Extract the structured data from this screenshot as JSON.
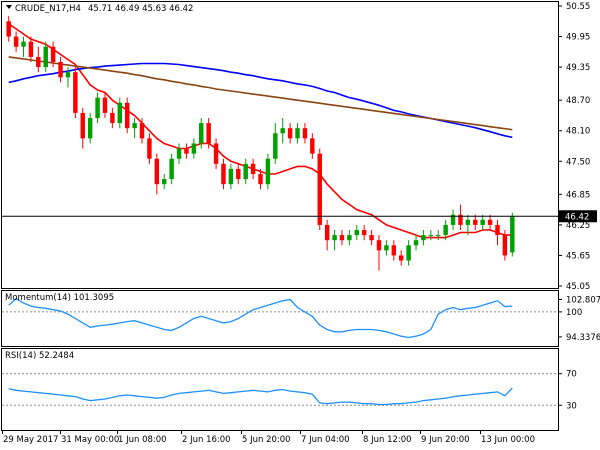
{
  "chart_data": [
    {
      "type": "candlestick",
      "title": "CRUDE_N17,H4",
      "ohlc_label": "45.71 46.49 45.63 46.42",
      "last_price": 46.42,
      "ylim": [
        45.05,
        50.55
      ],
      "y_ticks": [
        "50.55",
        "49.95",
        "49.35",
        "48.70",
        "48.10",
        "47.50",
        "46.85",
        "46.25",
        "45.65",
        "45.05"
      ],
      "x_labels": [
        "29 May 2017",
        "31 May 00:00",
        "1 Jun 08:00",
        "2 Jun 16:00",
        "5 Jun 20:00",
        "7 Jun 04:00",
        "8 Jun 12:00",
        "9 Jun 20:00",
        "13 Jun 00:00"
      ],
      "colors": {
        "bull": "#00a000",
        "bear": "#ff0000",
        "fast_ma": "#ff0000",
        "mid_ma": "#0000ff",
        "slow_ma": "#8b4513",
        "price_line": "#000000"
      },
      "candles": [
        [
          50.25,
          50.35,
          49.85,
          49.95
        ],
        [
          49.95,
          50.05,
          49.65,
          49.75
        ],
        [
          49.75,
          49.95,
          49.55,
          49.85
        ],
        [
          49.85,
          49.95,
          49.45,
          49.55
        ],
        [
          49.55,
          49.75,
          49.25,
          49.35
        ],
        [
          49.35,
          49.85,
          49.25,
          49.75
        ],
        [
          49.75,
          49.85,
          49.35,
          49.45
        ],
        [
          49.45,
          49.55,
          49.05,
          49.15
        ],
        [
          49.15,
          49.35,
          48.95,
          49.25
        ],
        [
          49.25,
          49.35,
          48.35,
          48.45
        ],
        [
          48.45,
          48.55,
          47.75,
          47.95
        ],
        [
          47.95,
          48.45,
          47.85,
          48.35
        ],
        [
          48.35,
          48.85,
          48.25,
          48.75
        ],
        [
          48.75,
          48.85,
          48.35,
          48.45
        ],
        [
          48.45,
          48.55,
          48.15,
          48.25
        ],
        [
          48.25,
          48.75,
          48.15,
          48.65
        ],
        [
          48.65,
          48.75,
          48.05,
          48.15
        ],
        [
          48.15,
          48.35,
          47.95,
          48.25
        ],
        [
          48.25,
          48.35,
          47.85,
          47.95
        ],
        [
          47.95,
          48.05,
          47.45,
          47.55
        ],
        [
          47.55,
          47.65,
          46.85,
          47.05
        ],
        [
          47.05,
          47.25,
          46.95,
          47.15
        ],
        [
          47.15,
          47.65,
          47.05,
          47.55
        ],
        [
          47.55,
          47.85,
          47.45,
          47.75
        ],
        [
          47.75,
          47.85,
          47.55,
          47.65
        ],
        [
          47.65,
          47.95,
          47.55,
          47.85
        ],
        [
          47.85,
          48.35,
          47.75,
          48.25
        ],
        [
          48.25,
          48.35,
          47.75,
          47.85
        ],
        [
          47.85,
          47.95,
          47.35,
          47.45
        ],
        [
          47.45,
          47.55,
          46.95,
          47.05
        ],
        [
          47.05,
          47.45,
          46.95,
          47.35
        ],
        [
          47.35,
          47.45,
          47.05,
          47.15
        ],
        [
          47.15,
          47.55,
          47.05,
          47.45
        ],
        [
          47.45,
          47.55,
          47.15,
          47.25
        ],
        [
          47.25,
          47.35,
          46.95,
          47.05
        ],
        [
          47.05,
          47.65,
          46.95,
          47.55
        ],
        [
          47.55,
          48.25,
          47.45,
          48.05
        ],
        [
          48.05,
          48.35,
          47.85,
          48.15
        ],
        [
          48.15,
          48.25,
          47.85,
          47.95
        ],
        [
          47.95,
          48.25,
          47.85,
          48.15
        ],
        [
          48.15,
          48.25,
          47.85,
          47.95
        ],
        [
          47.95,
          48.05,
          47.55,
          47.65
        ],
        [
          47.65,
          47.75,
          46.15,
          46.25
        ],
        [
          46.25,
          46.35,
          45.75,
          45.95
        ],
        [
          45.95,
          46.15,
          45.75,
          46.05
        ],
        [
          46.05,
          46.15,
          45.85,
          45.95
        ],
        [
          45.95,
          46.15,
          45.85,
          46.05
        ],
        [
          46.05,
          46.25,
          45.95,
          46.15
        ],
        [
          46.15,
          46.25,
          45.95,
          46.05
        ],
        [
          46.05,
          46.15,
          45.85,
          45.95
        ],
        [
          45.95,
          46.05,
          45.35,
          45.75
        ],
        [
          45.75,
          45.95,
          45.65,
          45.85
        ],
        [
          45.85,
          45.95,
          45.55,
          45.65
        ],
        [
          45.65,
          45.75,
          45.45,
          45.55
        ],
        [
          45.55,
          45.95,
          45.45,
          45.85
        ],
        [
          45.85,
          46.05,
          45.75,
          45.95
        ],
        [
          45.95,
          46.15,
          45.85,
          46.05
        ],
        [
          46.05,
          46.15,
          45.95,
          46.05
        ],
        [
          46.05,
          46.15,
          45.95,
          46.05
        ],
        [
          46.05,
          46.35,
          45.95,
          46.25
        ],
        [
          46.25,
          46.55,
          46.15,
          46.45
        ],
        [
          46.45,
          46.65,
          46.15,
          46.25
        ],
        [
          46.25,
          46.45,
          46.05,
          46.35
        ],
        [
          46.35,
          46.45,
          46.15,
          46.25
        ],
        [
          46.25,
          46.45,
          46.15,
          46.35
        ],
        [
          46.35,
          46.45,
          46.15,
          46.25
        ],
        [
          46.25,
          46.35,
          45.85,
          46.05
        ],
        [
          46.05,
          46.15,
          45.55,
          45.65
        ],
        [
          45.71,
          46.49,
          45.63,
          46.42
        ]
      ],
      "mas": [
        {
          "name": "fast",
          "values": [
            50.2,
            50.1,
            50.0,
            49.9,
            49.85,
            49.8,
            49.7,
            49.6,
            49.5,
            49.4,
            49.2,
            49.0,
            48.9,
            48.85,
            48.7,
            48.6,
            48.5,
            48.4,
            48.25,
            48.1,
            47.95,
            47.85,
            47.8,
            47.75,
            47.75,
            47.8,
            47.85,
            47.85,
            47.75,
            47.6,
            47.5,
            47.45,
            47.4,
            47.35,
            47.3,
            47.25,
            47.25,
            47.3,
            47.35,
            47.4,
            47.4,
            47.35,
            47.25,
            47.05,
            46.9,
            46.75,
            46.65,
            46.55,
            46.5,
            46.45,
            46.35,
            46.25,
            46.2,
            46.15,
            46.1,
            46.05,
            46.0,
            46.0,
            46.0,
            46.0,
            46.05,
            46.1,
            46.1,
            46.1,
            46.15,
            46.15,
            46.1,
            46.05,
            46.05
          ]
        },
        {
          "name": "mid",
          "values": [
            49.05,
            49.08,
            49.12,
            49.15,
            49.18,
            49.2,
            49.22,
            49.25,
            49.27,
            49.3,
            49.32,
            49.34,
            49.35,
            49.37,
            49.38,
            49.39,
            49.4,
            49.41,
            49.42,
            49.42,
            49.42,
            49.42,
            49.41,
            49.4,
            49.38,
            49.36,
            49.34,
            49.32,
            49.3,
            49.28,
            49.25,
            49.23,
            49.2,
            49.18,
            49.15,
            49.12,
            49.1,
            49.08,
            49.05,
            49.02,
            49.0,
            48.97,
            48.93,
            48.88,
            48.85,
            48.8,
            48.75,
            48.72,
            48.68,
            48.64,
            48.6,
            48.55,
            48.5,
            48.47,
            48.43,
            48.4,
            48.37,
            48.34,
            48.31,
            48.28,
            48.25,
            48.22,
            48.19,
            48.16,
            48.12,
            48.08,
            48.04,
            48.0,
            47.97
          ]
        },
        {
          "name": "slow",
          "values": [
            49.55,
            49.53,
            49.51,
            49.49,
            49.47,
            49.45,
            49.43,
            49.41,
            49.39,
            49.37,
            49.35,
            49.33,
            49.31,
            49.29,
            49.27,
            49.25,
            49.23,
            49.2,
            49.18,
            49.15,
            49.12,
            49.1,
            49.07,
            49.05,
            49.02,
            49.0,
            48.97,
            48.95,
            48.92,
            48.9,
            48.88,
            48.86,
            48.84,
            48.82,
            48.8,
            48.78,
            48.76,
            48.74,
            48.72,
            48.7,
            48.68,
            48.66,
            48.64,
            48.62,
            48.6,
            48.58,
            48.56,
            48.54,
            48.52,
            48.5,
            48.48,
            48.46,
            48.44,
            48.42,
            48.4,
            48.38,
            48.36,
            48.34,
            48.32,
            48.3,
            48.28,
            48.26,
            48.24,
            48.22,
            48.2,
            48.18,
            48.16,
            48.14,
            48.12
          ]
        }
      ]
    },
    {
      "type": "line",
      "title": "Momentum(14) 101.3095",
      "ylim": [
        92.5,
        104.5
      ],
      "y_ticks": [
        "102.8075",
        "100",
        "94.3376"
      ],
      "reference_line": 100,
      "color": "#1e90ff",
      "values": [
        101.5,
        103.0,
        102.0,
        101.3,
        101.0,
        100.8,
        100.5,
        100.2,
        99.5,
        98.5,
        97.5,
        96.5,
        96.8,
        97.0,
        97.2,
        97.5,
        97.8,
        98.0,
        97.5,
        97.0,
        96.5,
        96.0,
        95.8,
        96.5,
        97.5,
        98.5,
        99.0,
        98.5,
        98.0,
        97.5,
        97.8,
        98.5,
        99.5,
        100.5,
        101.0,
        101.5,
        102.0,
        102.5,
        102.8,
        101.0,
        100.0,
        99.0,
        97.0,
        96.0,
        95.5,
        95.5,
        95.8,
        96.0,
        96.0,
        96.0,
        95.8,
        95.5,
        95.0,
        94.5,
        94.2,
        94.5,
        95.0,
        96.0,
        99.5,
        100.5,
        101.0,
        100.5,
        100.8,
        101.0,
        101.5,
        102.0,
        102.5,
        101.2,
        101.3
      ]
    },
    {
      "type": "line",
      "title": "RSI(14) 52.2484",
      "ylim": [
        0,
        100
      ],
      "y_ticks": [
        "70",
        "30"
      ],
      "reference_lines": [
        70,
        30
      ],
      "color": "#1e90ff",
      "values": [
        51,
        49,
        48,
        47,
        46,
        45,
        44,
        43,
        42,
        41,
        38,
        36,
        37,
        38,
        40,
        42,
        43,
        42,
        41,
        40,
        39,
        40,
        43,
        45,
        46,
        47,
        48,
        49,
        47,
        45,
        46,
        47,
        48,
        49,
        48,
        47,
        49,
        50,
        48,
        47,
        46,
        44,
        33,
        32,
        33,
        34,
        34,
        33,
        32,
        32,
        31,
        31,
        32,
        32,
        33,
        34,
        36,
        37,
        38,
        39,
        41,
        42,
        43,
        44,
        45,
        46,
        47,
        42,
        52
      ]
    }
  ]
}
